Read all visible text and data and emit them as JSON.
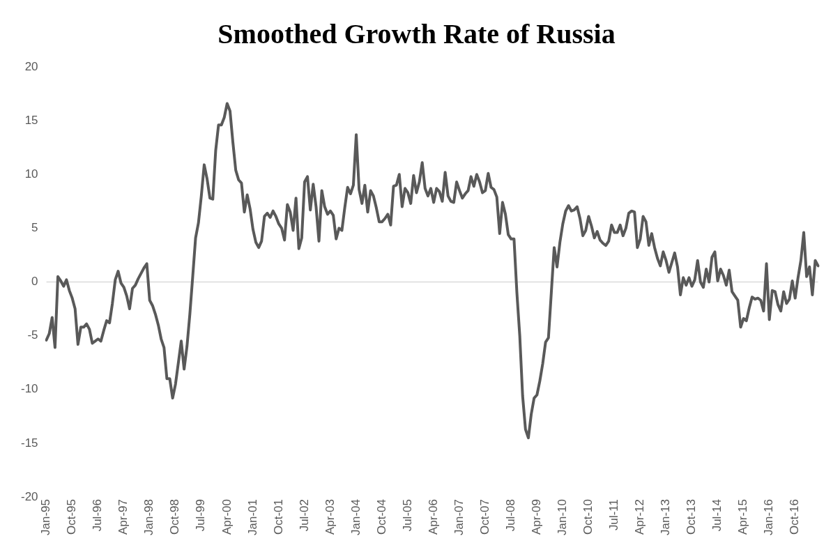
{
  "chart_data": {
    "type": "line",
    "title": "Smoothed Growth Rate of Russia",
    "categories": [
      "Jan-95",
      null,
      null,
      null,
      null,
      null,
      null,
      null,
      null,
      "Oct-95",
      null,
      null,
      null,
      null,
      null,
      null,
      null,
      null,
      "Jul-96",
      null,
      null,
      null,
      null,
      null,
      null,
      null,
      null,
      "Apr-97",
      null,
      null,
      null,
      null,
      null,
      null,
      null,
      null,
      "Jan-98",
      null,
      null,
      null,
      null,
      null,
      null,
      null,
      null,
      "Oct-98",
      null,
      null,
      null,
      null,
      null,
      null,
      null,
      null,
      "Jul-99",
      null,
      null,
      null,
      null,
      null,
      null,
      null,
      null,
      "Apr-00",
      null,
      null,
      null,
      null,
      null,
      null,
      null,
      null,
      "Jan-01",
      null,
      null,
      null,
      null,
      null,
      null,
      null,
      null,
      "Oct-01",
      null,
      null,
      null,
      null,
      null,
      null,
      null,
      null,
      "Jul-02",
      null,
      null,
      null,
      null,
      null,
      null,
      null,
      null,
      "Apr-03",
      null,
      null,
      null,
      null,
      null,
      null,
      null,
      null,
      "Jan-04",
      null,
      null,
      null,
      null,
      null,
      null,
      null,
      null,
      "Oct-04",
      null,
      null,
      null,
      null,
      null,
      null,
      null,
      null,
      "Jul-05",
      null,
      null,
      null,
      null,
      null,
      null,
      null,
      null,
      "Apr-06",
      null,
      null,
      null,
      null,
      null,
      null,
      null,
      null,
      "Jan-07",
      null,
      null,
      null,
      null,
      null,
      null,
      null,
      null,
      "Oct-07",
      null,
      null,
      null,
      null,
      null,
      null,
      null,
      null,
      "Jul-08",
      null,
      null,
      null,
      null,
      null,
      null,
      null,
      null,
      "Apr-09",
      null,
      null,
      null,
      null,
      null,
      null,
      null,
      null,
      "Jan-10",
      null,
      null,
      null,
      null,
      null,
      null,
      null,
      null,
      "Oct-10",
      null,
      null,
      null,
      null,
      null,
      null,
      null,
      null,
      "Jul-11",
      null,
      null,
      null,
      null,
      null,
      null,
      null,
      null,
      "Apr-12",
      null,
      null,
      null,
      null,
      null,
      null,
      null,
      null,
      "Jan-13",
      null,
      null,
      null,
      null,
      null,
      null,
      null,
      null,
      "Oct-13",
      null,
      null,
      null,
      null,
      null,
      null,
      null,
      null,
      "Jul-14",
      null,
      null,
      null,
      null,
      null,
      null,
      null,
      null,
      "Apr-15",
      null,
      null,
      null,
      null,
      null,
      null,
      null,
      null,
      "Jan-16",
      null,
      null,
      null,
      null,
      null,
      null,
      null,
      null,
      "Oct-16",
      null,
      null,
      null,
      null,
      null,
      null,
      null,
      null
    ],
    "series": [
      {
        "color": "#595959",
        "values": [
          -5.4,
          -4.8,
          -3.3,
          -6.1,
          0.5,
          0.1,
          -0.4,
          0.2,
          -0.8,
          -1.5,
          -2.5,
          -5.8,
          -4.2,
          -4.2,
          -3.9,
          -4.4,
          -5.7,
          -5.5,
          -5.3,
          -5.5,
          -4.5,
          -3.6,
          -3.8,
          -2.0,
          0.2,
          1.0,
          -0.1,
          -0.5,
          -1.3,
          -2.5,
          -0.6,
          -0.3,
          0.3,
          0.8,
          1.3,
          1.7,
          -1.7,
          -2.2,
          -3.0,
          -4.0,
          -5.3,
          -6.1,
          -9.0,
          -9.0,
          -10.8,
          -9.5,
          -7.5,
          -5.5,
          -8.1,
          -6.0,
          -3.0,
          0.5,
          4.1,
          5.5,
          8.0,
          10.9,
          9.6,
          7.8,
          7.7,
          12.2,
          14.6,
          14.6,
          15.3,
          16.6,
          15.9,
          13.0,
          10.4,
          9.5,
          9.2,
          6.5,
          8.1,
          6.8,
          4.9,
          3.7,
          3.2,
          3.8,
          6.1,
          6.4,
          6.0,
          6.6,
          6.1,
          5.4,
          5.0,
          3.9,
          7.2,
          6.5,
          4.8,
          7.8,
          3.1,
          4.1,
          9.3,
          9.8,
          6.7,
          9.1,
          7.0,
          3.8,
          8.5,
          7.0,
          6.3,
          6.6,
          6.2,
          4.0,
          5.0,
          4.8,
          6.9,
          8.8,
          8.2,
          9.0,
          13.7,
          8.6,
          7.3,
          9.0,
          6.5,
          8.5,
          8.0,
          6.9,
          5.6,
          5.6,
          5.9,
          6.3,
          5.3,
          8.9,
          9.0,
          10.0,
          7.0,
          8.7,
          8.3,
          7.3,
          9.9,
          8.3,
          9.3,
          11.1,
          8.7,
          8.0,
          8.7,
          7.4,
          8.7,
          8.4,
          7.5,
          10.2,
          8.0,
          7.5,
          7.4,
          9.3,
          8.5,
          7.8,
          8.2,
          8.5,
          9.8,
          8.9,
          10.0,
          9.3,
          8.3,
          8.5,
          10.1,
          8.8,
          8.6,
          7.9,
          4.5,
          7.4,
          6.3,
          4.4,
          4.0,
          4.0,
          -1.0,
          -5.0,
          -10.6,
          -13.7,
          -14.5,
          -12.3,
          -10.8,
          -10.5,
          -9.2,
          -7.6,
          -5.6,
          -5.2,
          -1.0,
          3.2,
          1.4,
          3.7,
          5.4,
          6.6,
          7.1,
          6.6,
          6.7,
          7.0,
          5.9,
          4.3,
          4.8,
          6.1,
          5.2,
          4.1,
          4.7,
          3.9,
          3.6,
          3.4,
          3.8,
          5.3,
          4.6,
          4.6,
          5.3,
          4.3,
          5.0,
          6.4,
          6.6,
          6.5,
          3.2,
          4.0,
          6.1,
          5.6,
          3.4,
          4.5,
          3.2,
          2.2,
          1.5,
          2.8,
          2.0,
          0.9,
          1.8,
          2.7,
          1.4,
          -1.2,
          0.4,
          -0.3,
          0.4,
          -0.4,
          0.2,
          2.0,
          0.0,
          -0.5,
          1.2,
          0.0,
          2.3,
          2.8,
          0.1,
          1.2,
          0.6,
          -0.3,
          1.1,
          -0.9,
          -1.3,
          -1.7,
          -4.2,
          -3.4,
          -3.6,
          -2.4,
          -1.4,
          -1.6,
          -1.5,
          -1.7,
          -2.7,
          1.7,
          -3.5,
          -0.8,
          -0.9,
          -2.1,
          -2.7,
          -0.9,
          -2.0,
          -1.6,
          0.1,
          -1.5,
          0.4,
          2.0,
          4.6,
          0.5,
          1.4,
          -1.2,
          2.0,
          1.5
        ]
      }
    ],
    "ylim": [
      -20,
      20
    ],
    "yticks": [
      -20,
      -15,
      -10,
      -5,
      0,
      5,
      10,
      15,
      20
    ],
    "ref_lines": [
      {
        "axis": "y",
        "value": 0,
        "color": "#d9d9d9"
      }
    ],
    "grid": false,
    "legend": false
  }
}
